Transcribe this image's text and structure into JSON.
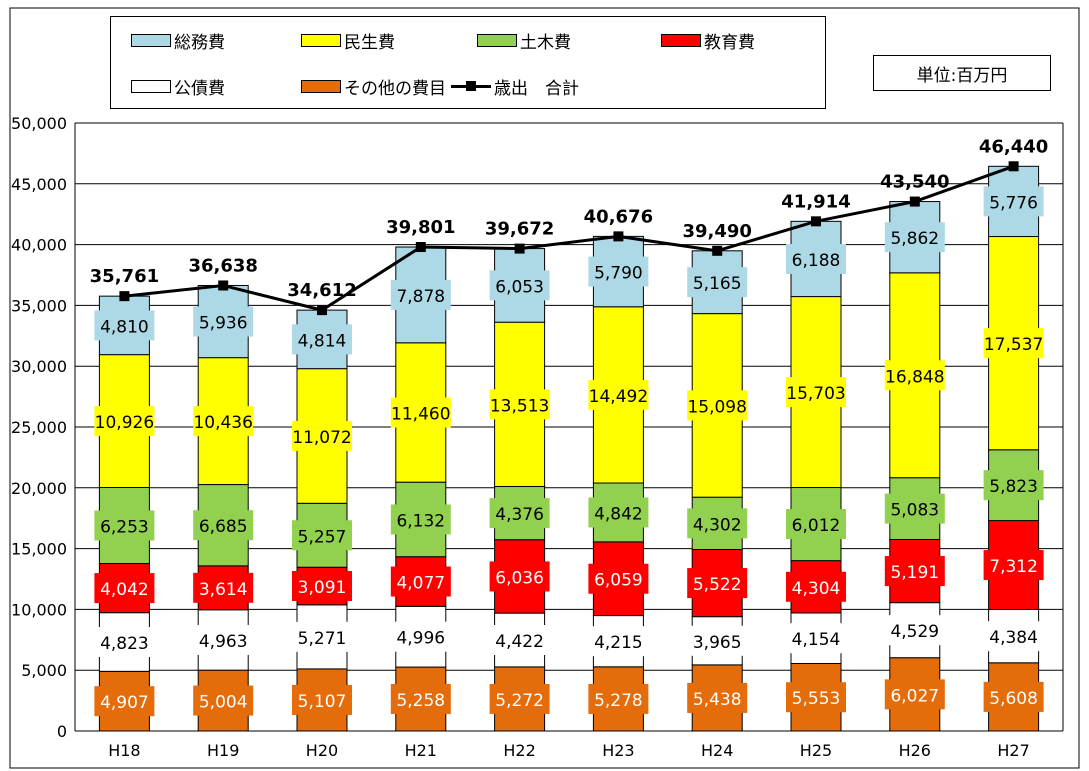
{
  "legend": {
    "items": [
      {
        "label": "総務費",
        "kind": "swatch",
        "color": "#add8e6"
      },
      {
        "label": "民生費",
        "kind": "swatch",
        "color": "#ffff00"
      },
      {
        "label": "土木費",
        "kind": "swatch",
        "color": "#92d050"
      },
      {
        "label": "教育費",
        "kind": "swatch",
        "color": "#ff0000"
      },
      {
        "label": "公債費",
        "kind": "swatch",
        "color": "#ffffff"
      },
      {
        "label": "その他の費目",
        "kind": "swatch",
        "color": "#e46c0a"
      },
      {
        "label": "歳出　合計",
        "kind": "line",
        "color": "#000000"
      }
    ]
  },
  "unit_label": "単位:百万円",
  "chart_data": {
    "type": "bar",
    "stacked": true,
    "categories": [
      "H18",
      "H19",
      "H20",
      "H21",
      "H22",
      "H23",
      "H24",
      "H25",
      "H26",
      "H27"
    ],
    "ylim": [
      0,
      50000
    ],
    "yticks": [
      0,
      5000,
      10000,
      15000,
      20000,
      25000,
      30000,
      35000,
      40000,
      45000,
      50000
    ],
    "ytick_labels": [
      "0",
      "5,000",
      "10,000",
      "15,000",
      "20,000",
      "25,000",
      "30,000",
      "35,000",
      "40,000",
      "45,000",
      "50,000"
    ],
    "grid": true,
    "legend_position": "top",
    "series": [
      {
        "name": "その他の費目",
        "color": "#e46c0a",
        "label_bg": "#e46c0a",
        "label_color": "#ffffff",
        "values": [
          4907,
          5004,
          5107,
          5258,
          5272,
          5278,
          5438,
          5553,
          6027,
          5608
        ],
        "labels": [
          "4,907",
          "5,004",
          "5,107",
          "5,258",
          "5,272",
          "5,278",
          "5,438",
          "5,553",
          "6,027",
          "5,608"
        ]
      },
      {
        "name": "公債費",
        "color": "#ffffff",
        "label_bg": "#ffffff",
        "label_color": "#000000",
        "values": [
          4823,
          4963,
          5271,
          4996,
          4422,
          4215,
          3965,
          4154,
          4529,
          4384
        ],
        "labels": [
          "4,823",
          "4,963",
          "5,271",
          "4,996",
          "4,422",
          "4,215",
          "3,965",
          "4,154",
          "4,529",
          "4,384"
        ]
      },
      {
        "name": "教育費",
        "color": "#ff0000",
        "label_bg": "#ff0000",
        "label_color": "#ffffff",
        "values": [
          4042,
          3614,
          3091,
          4077,
          6036,
          6059,
          5522,
          4304,
          5191,
          7312
        ],
        "labels": [
          "4,042",
          "3,614",
          "3,091",
          "4,077",
          "6,036",
          "6,059",
          "5,522",
          "4,304",
          "5,191",
          "7,312"
        ]
      },
      {
        "name": "土木費",
        "color": "#92d050",
        "label_bg": "#92d050",
        "label_color": "#000000",
        "values": [
          6253,
          6685,
          5257,
          6132,
          4376,
          4842,
          4302,
          6012,
          5083,
          5823
        ],
        "labels": [
          "6,253",
          "6,685",
          "5,257",
          "6,132",
          "4,376",
          "4,842",
          "4,302",
          "6,012",
          "5,083",
          "5,823"
        ]
      },
      {
        "name": "民生費",
        "color": "#ffff00",
        "label_bg": "#ffff00",
        "label_color": "#000000",
        "values": [
          10926,
          10436,
          11072,
          11460,
          13513,
          14492,
          15098,
          15703,
          16848,
          17537
        ],
        "labels": [
          "10,926",
          "10,436",
          "11,072",
          "11,460",
          "13,513",
          "14,492",
          "15,098",
          "15,703",
          "16,848",
          "17,537"
        ]
      },
      {
        "name": "総務費",
        "color": "#add8e6",
        "label_bg": "#add8e6",
        "label_color": "#000000",
        "values": [
          4810,
          5936,
          4814,
          7878,
          6053,
          5790,
          5165,
          6188,
          5862,
          5776
        ],
        "labels": [
          "4,810",
          "5,936",
          "4,814",
          "7,878",
          "6,053",
          "5,790",
          "5,165",
          "6,188",
          "5,862",
          "5,776"
        ]
      }
    ],
    "total_line": {
      "name": "歳出　合計",
      "color": "#000000",
      "values": [
        35761,
        36638,
        34612,
        39801,
        39672,
        40676,
        39490,
        41914,
        43540,
        46440
      ],
      "labels": [
        "35,761",
        "36,638",
        "34,612",
        "39,801",
        "39,672",
        "40,676",
        "39,490",
        "41,914",
        "43,540",
        "46,440"
      ]
    }
  }
}
